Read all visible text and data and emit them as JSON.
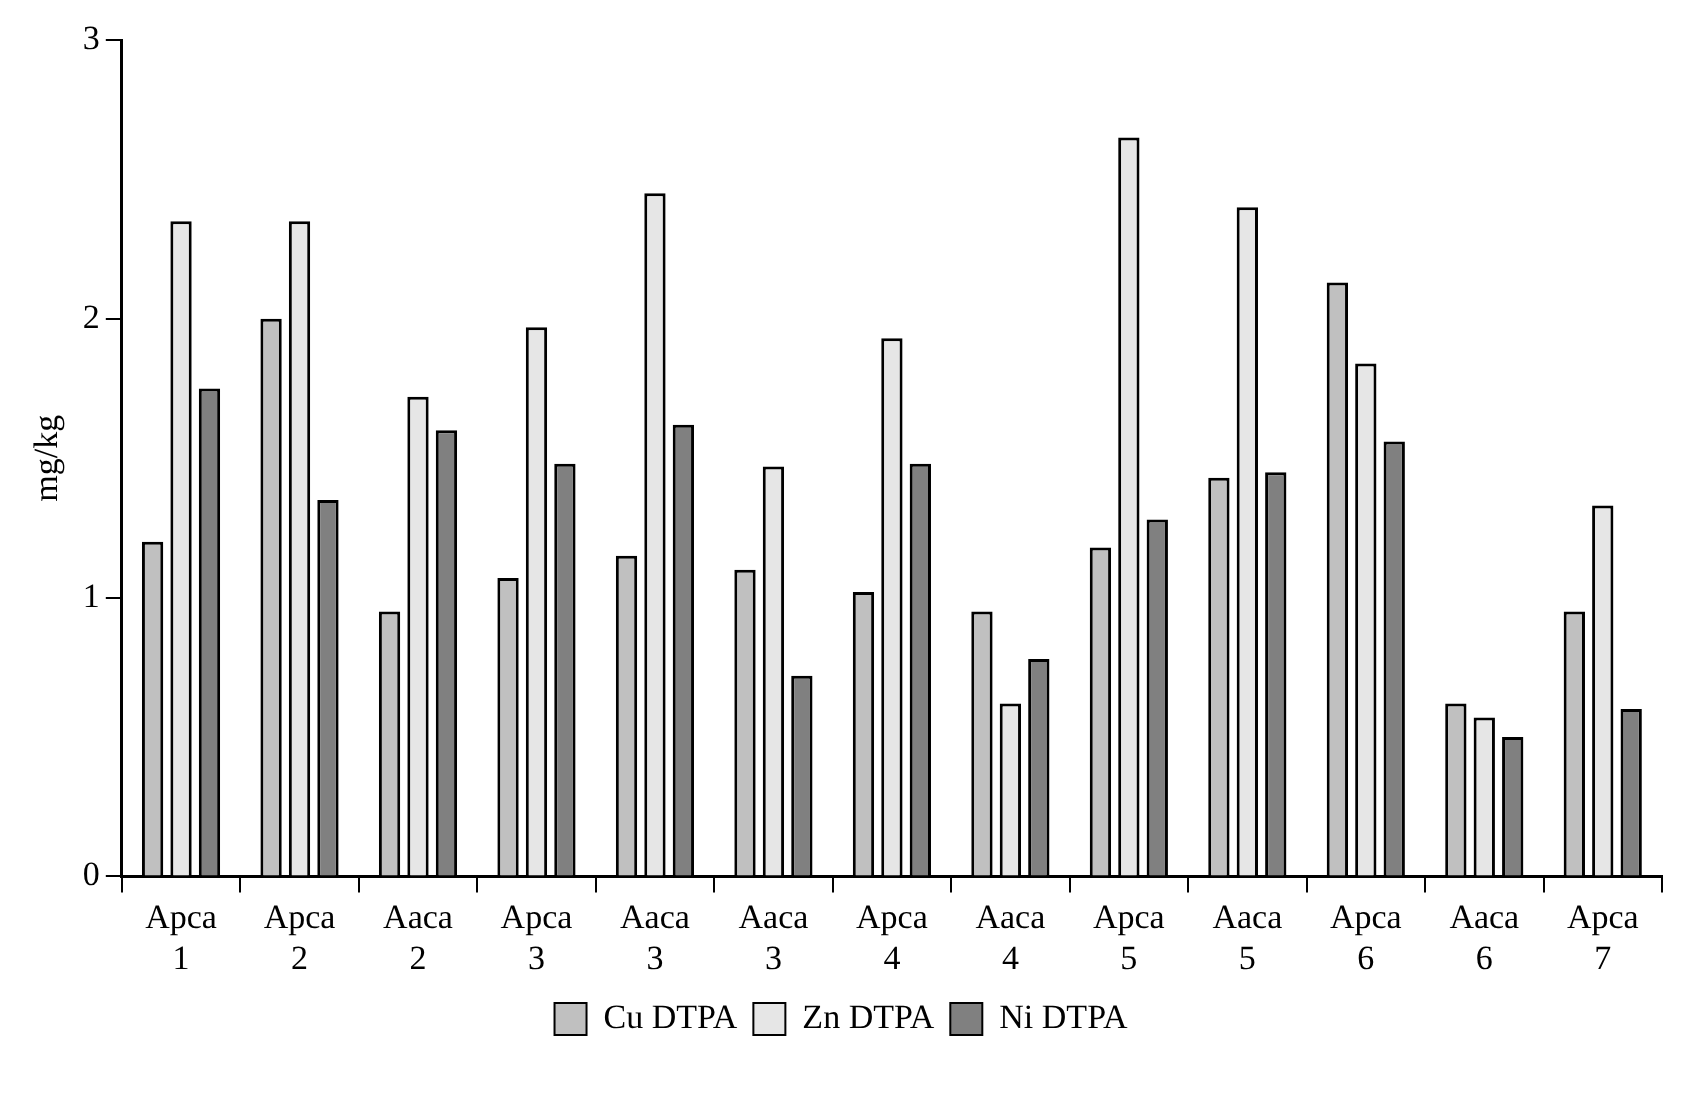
{
  "chart_data": {
    "type": "bar",
    "ylabel": "mg/kg",
    "categories": [
      "Apca 1",
      "Apca 2",
      "Aaca 2",
      "Apca 3",
      "Aaca 3",
      "Aaca 3",
      "Apca 4",
      "Aaca 4",
      "Apca 5",
      "Aaca 5",
      "Apca 6",
      "Aaca 6",
      "Apca 7"
    ],
    "series": [
      {
        "name": "Cu DTPA",
        "color": "#c0c0c0",
        "values": [
          1.2,
          2.0,
          0.95,
          1.07,
          1.15,
          1.1,
          1.02,
          0.95,
          1.18,
          1.43,
          2.13,
          0.62,
          0.95
        ]
      },
      {
        "name": "Zn DTPA",
        "color": "#e6e6e6",
        "values": [
          2.35,
          2.35,
          1.72,
          1.97,
          2.45,
          1.47,
          1.93,
          0.62,
          2.65,
          2.4,
          1.84,
          0.57,
          1.33
        ]
      },
      {
        "name": "Ni DTPA",
        "color": "#808080",
        "values": [
          1.75,
          1.35,
          1.6,
          1.48,
          1.62,
          0.72,
          1.48,
          0.78,
          1.28,
          1.45,
          1.56,
          0.5,
          0.6
        ]
      }
    ],
    "ylim": [
      0,
      3
    ],
    "yticks": [
      0,
      1,
      2,
      3
    ],
    "grid": false,
    "legend": "bottom"
  }
}
